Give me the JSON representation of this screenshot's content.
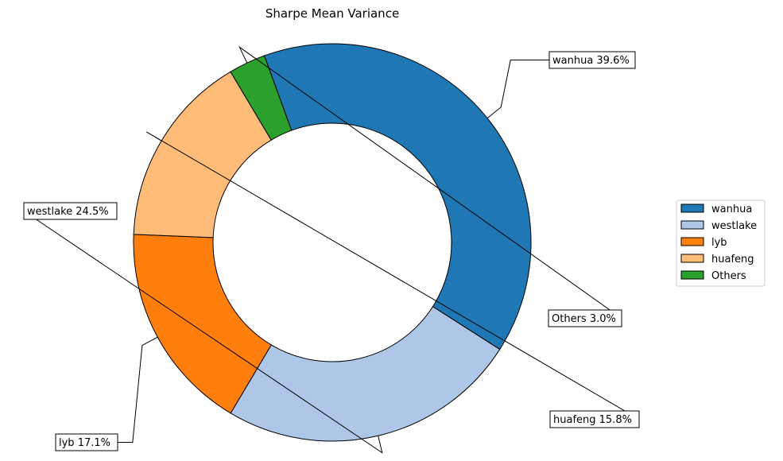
{
  "chart_data": {
    "type": "pie",
    "donut": true,
    "title": "Sharpe Mean Variance",
    "slices": [
      {
        "name": "wanhua",
        "value": 39.6,
        "label": "wanhua 39.6%",
        "color": "#1f77b4"
      },
      {
        "name": "westlake",
        "value": 24.5,
        "label": "westlake 24.5%",
        "color": "#aec7e8"
      },
      {
        "name": "lyb",
        "value": 17.1,
        "label": "lyb 17.1%",
        "color": "#ff7f0e"
      },
      {
        "name": "huafeng",
        "value": 15.8,
        "label": "huafeng 15.8%",
        "color": "#ffbb78"
      },
      {
        "name": "Others",
        "value": 3.0,
        "label": "Others 3.0%",
        "color": "#2ca02c"
      }
    ],
    "legend": [
      "wanhua",
      "westlake",
      "lyb",
      "huafeng",
      "Others"
    ],
    "legend_position": "right"
  }
}
